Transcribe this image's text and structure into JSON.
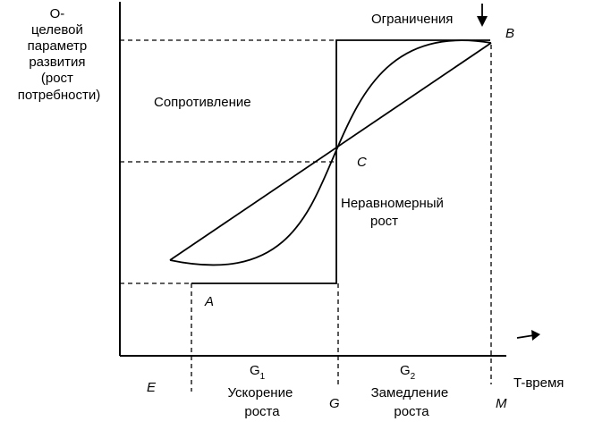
{
  "y_axis_label": [
    "О-",
    "целевой",
    "параметр",
    "развития",
    "(рост",
    "потребности)"
  ],
  "x_axis_label": "T-время",
  "constraints_label": "Ограничения",
  "resistance_label": "Сопротивление",
  "uneven_growth_label": [
    "Неравномерный",
    "рост"
  ],
  "points": {
    "A": "A",
    "B": "B",
    "C": "C",
    "E": "E",
    "G": "G",
    "M": "M"
  },
  "g1": {
    "letter": "G",
    "index": "1",
    "caption": [
      "Ускорение",
      "роста"
    ]
  },
  "g2": {
    "letter": "G",
    "index": "2",
    "caption": [
      "Замедление",
      "роста"
    ]
  }
}
